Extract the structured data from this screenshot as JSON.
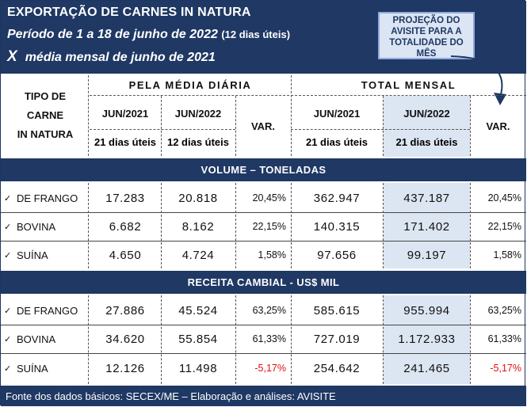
{
  "header": {
    "title": "EXPORTAÇÃO DE CARNES IN NATURA",
    "period": "Período de 1 a 18 de junho de 2022",
    "period_note": "(12 dias úteis)",
    "compare_x": "X",
    "compare": "média mensal de junho de 2021"
  },
  "projection_note": "PROJEÇÃO DO AVISITE PARA A TOTALIDADE DO MÊS",
  "columns": {
    "type_label_1": "TIPO DE",
    "type_label_2": "CARNE",
    "type_label_3": "IN NATURA",
    "group_daily": "PELA MÉDIA DIÁRIA",
    "group_total": "TOTAL MENSAL",
    "jun2021": "JUN/2021",
    "jun2022": "JUN/2022",
    "var": "VAR.",
    "days21": "21 dias úteis",
    "days12": "12 dias úteis"
  },
  "volume": {
    "title": "VOLUME – TONELADAS",
    "rows": [
      {
        "check": "✓",
        "label": "DE FRANGO",
        "d21": "17.283",
        "d22": "20.818",
        "dvar": "20,45%",
        "t21": "362.947",
        "t22": "437.187",
        "tvar": "20,45%"
      },
      {
        "check": "✓",
        "label": "BOVINA",
        "d21": "6.682",
        "d22": "8.162",
        "dvar": "22,15%",
        "t21": "140.315",
        "t22": "171.402",
        "tvar": "22,15%"
      },
      {
        "check": "✓",
        "label": "SUÍNA",
        "d21": "4.650",
        "d22": "4.724",
        "dvar": "1,58%",
        "t21": "97.656",
        "t22": "99.197",
        "tvar": "1,58%"
      }
    ]
  },
  "revenue": {
    "title": "RECEITA  CAMBIAL  - US$ MIL",
    "rows": [
      {
        "check": "✓",
        "label": "DE FRANGO",
        "d21": "27.886",
        "d22": "45.524",
        "dvar": "63,25%",
        "t21": "585.615",
        "t22": "955.994",
        "tvar": "63,25%"
      },
      {
        "check": "✓",
        "label": "BOVINA",
        "d21": "34.620",
        "d22": "55.854",
        "dvar": "61,33%",
        "t21": "727.019",
        "t22": "1.172.933",
        "tvar": "61,33%"
      },
      {
        "check": "✓",
        "label": "SUÍNA",
        "d21": "12.126",
        "d22": "11.498",
        "dvar": "-5,17%",
        "t21": "254.642",
        "t22": "241.465",
        "tvar": "-5,17%"
      }
    ]
  },
  "footer": "Fonte dos dados básicos: SECEX/ME – Elaboração e análises: AVISITE",
  "colors": {
    "navy": "#1f3864",
    "highlight": "#dce6f2",
    "negative": "#e01010"
  }
}
